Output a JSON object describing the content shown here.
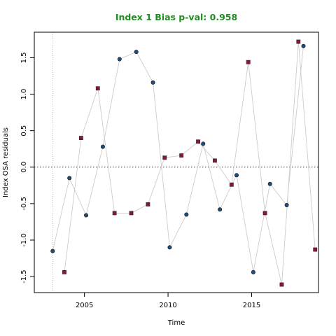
{
  "chart_data": {
    "type": "scatter",
    "title": "Index 1 Bias p-val: 0.958",
    "title_color": "#228B22",
    "xlabel": "Time",
    "ylabel": "Index OSA residuals",
    "xlim": [
      2002.0,
      2019.0
    ],
    "ylim": [
      -1.72,
      1.85
    ],
    "xticks": [
      2005,
      2010,
      2015
    ],
    "yticks": [
      -1.5,
      -1.0,
      -0.5,
      0.0,
      0.5,
      1.0,
      1.5
    ],
    "ytick_labels": [
      "-1.5",
      "-1.0",
      "-0.5",
      "0.0",
      "0.5",
      "1.0",
      "1.5"
    ],
    "vline_x": 2003.1,
    "hline_y": 0.0,
    "grid": false,
    "series": [
      {
        "marker": "circle",
        "color": "#1f4e79",
        "line_color": "#cccccc",
        "x": [
          2003.1,
          2004.1,
          2005.1,
          2006.1,
          2007.1,
          2008.1,
          2009.1,
          2010.1,
          2011.1,
          2012.1,
          2013.1,
          2014.1,
          2015.1,
          2016.1,
          2017.1,
          2018.1
        ],
        "y": [
          -1.15,
          -0.15,
          -0.66,
          0.28,
          1.48,
          1.58,
          1.16,
          -1.1,
          -0.65,
          0.32,
          -0.58,
          -0.11,
          -1.44,
          -0.23,
          -0.52,
          1.66
        ]
      },
      {
        "marker": "square",
        "color": "#8b1538",
        "line_color": "#cccccc",
        "x": [
          2003.8,
          2004.8,
          2005.8,
          2006.8,
          2007.8,
          2008.8,
          2009.8,
          2010.8,
          2011.8,
          2012.8,
          2013.8,
          2014.8,
          2015.8,
          2016.8,
          2017.8,
          2018.8
        ],
        "y": [
          -1.44,
          0.4,
          1.08,
          -0.63,
          -0.63,
          -0.51,
          0.13,
          0.16,
          0.35,
          0.09,
          -0.24,
          1.44,
          -0.63,
          -1.61,
          1.72,
          -1.13
        ]
      }
    ]
  }
}
